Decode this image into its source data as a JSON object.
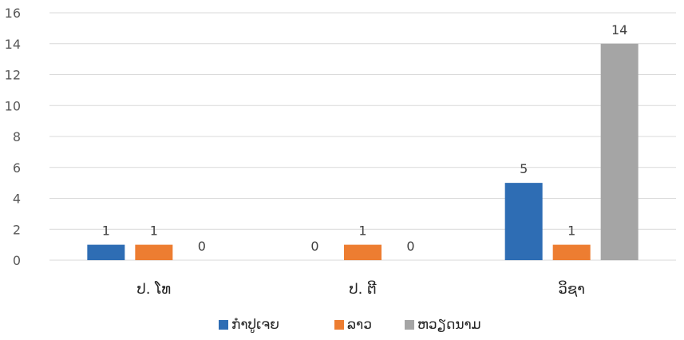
{
  "chart_data": {
    "type": "bar",
    "categories": [
      "ປ. ໂທ",
      "ປ. ຕີ",
      "ວິຊາ"
    ],
    "series": [
      {
        "name": "ກໍາປູເຈຍ",
        "color": "#2E6DB4",
        "values": [
          1,
          0,
          5
        ]
      },
      {
        "name": "ລາວ",
        "color": "#ED7D31",
        "values": [
          1,
          1,
          1
        ]
      },
      {
        "name": "ຫວຽດນາມ",
        "color": "#A5A5A5",
        "values": [
          0,
          0,
          14
        ]
      }
    ],
    "ylim": [
      0,
      16
    ],
    "yticks": [
      0,
      2,
      4,
      6,
      8,
      10,
      12,
      14,
      16
    ],
    "grid": true,
    "legend_position": "bottom",
    "data_labels": true
  }
}
